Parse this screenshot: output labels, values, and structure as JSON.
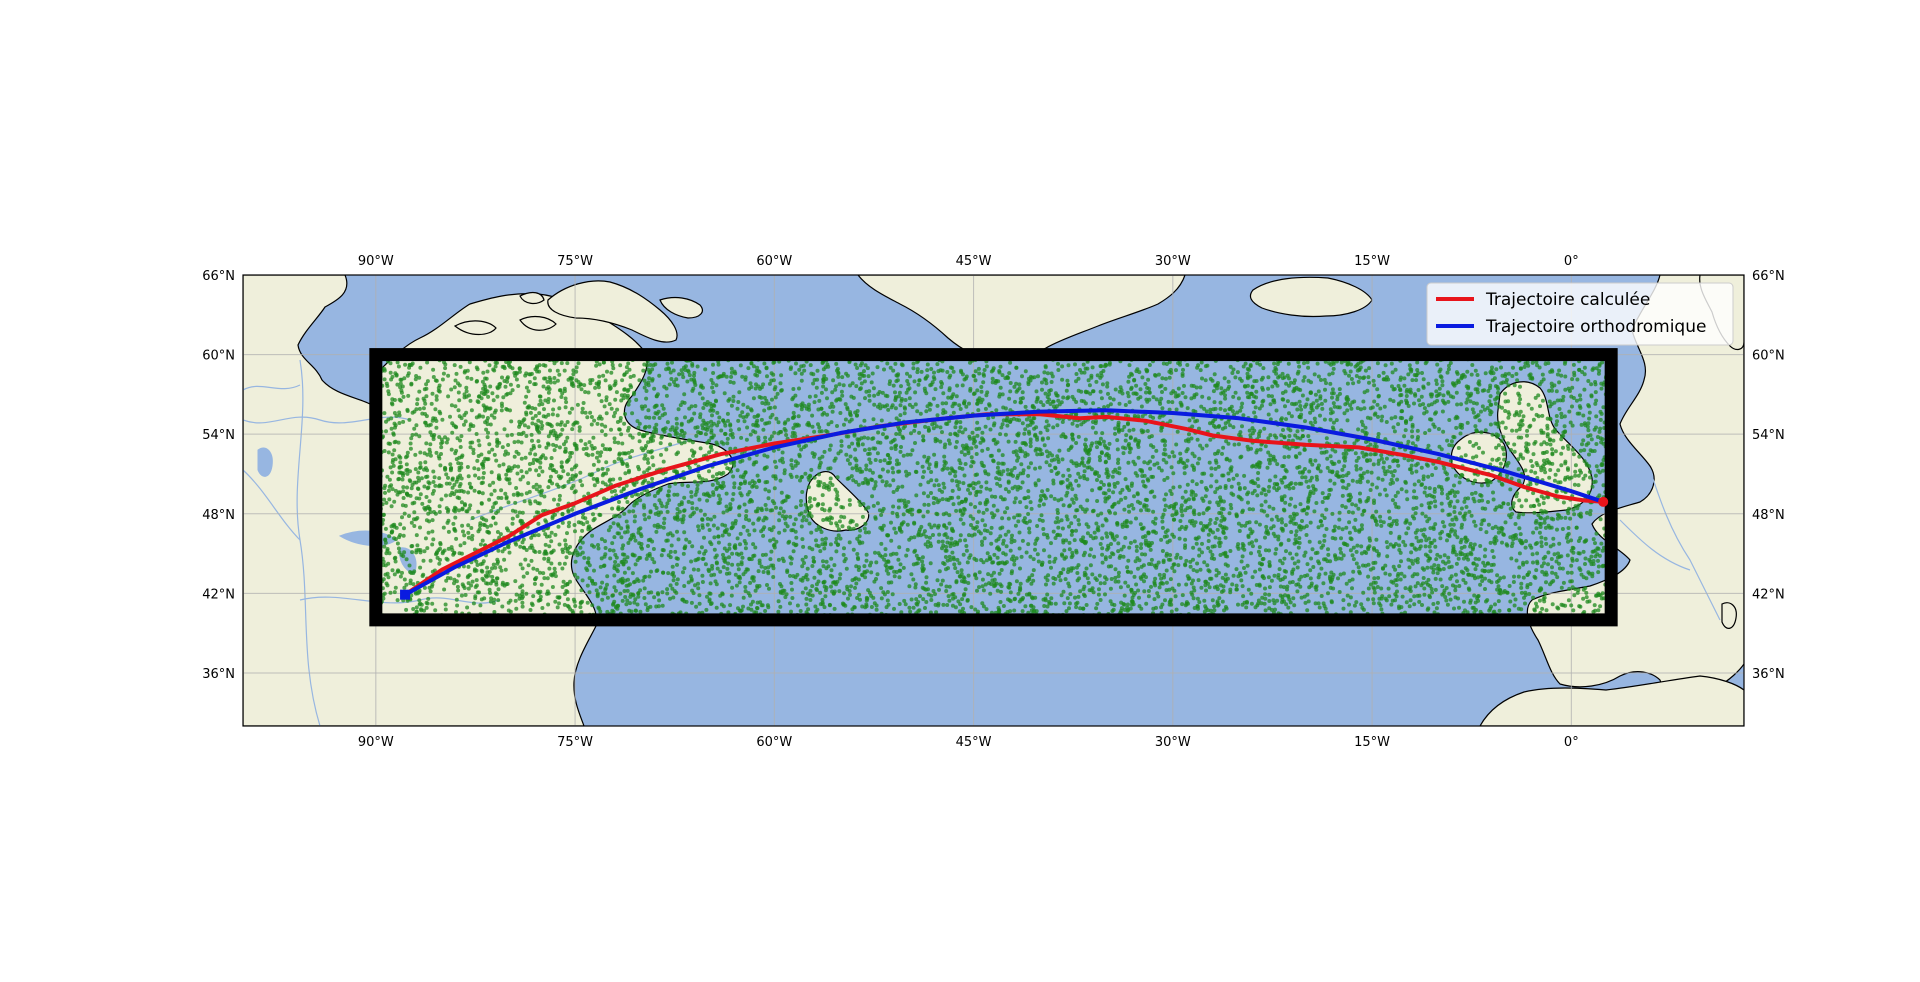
{
  "chart_data": {
    "type": "map",
    "projection": "PlateCarree",
    "extent": {
      "lon": [
        -100,
        13
      ],
      "lat": [
        32,
        66
      ]
    },
    "grid": true,
    "colors": {
      "ocean": "#97b6e1",
      "land": "#efefdb",
      "rivers": "#97b6e1",
      "frame": "#000000",
      "points": "#1f8a1f",
      "calculated": "#e8141b",
      "orthodromic": "#0a1be0"
    },
    "x_ticks": [
      "90°W",
      "75°W",
      "60°W",
      "45°W",
      "30°W",
      "15°W",
      "0°"
    ],
    "x_tick_values": [
      -90,
      -75,
      -60,
      -45,
      -30,
      -15,
      0
    ],
    "y_ticks": [
      "66°N",
      "60°N",
      "54°N",
      "48°N",
      "42°N",
      "36°N"
    ],
    "y_tick_values": [
      66,
      60,
      54,
      48,
      42,
      36
    ],
    "domain_box": {
      "lon": [
        -90,
        3
      ],
      "lat": [
        40,
        60
      ]
    },
    "random_points": {
      "count": 9000,
      "lon": [
        -90,
        3
      ],
      "lat": [
        40,
        60
      ]
    },
    "legend": {
      "position": "top-right",
      "entries": [
        {
          "label": "Trajectoire calculée",
          "series": "calculated"
        },
        {
          "label": "Trajectoire orthodromique",
          "series": "orthodromic"
        }
      ]
    },
    "series": [
      {
        "key": "calculated",
        "lon": [
          -87.8,
          -85.0,
          -80.0,
          -77.5,
          -75.0,
          -72.0,
          -68.0,
          -64.0,
          -60.0,
          -56.0,
          -52.0,
          -48.0,
          -44.0,
          -40.0,
          -37.0,
          -35.0,
          -32.0,
          -29.0,
          -27.0,
          -24.0,
          -20.0,
          -16.0,
          -12.5,
          -10.0,
          -6.0,
          -3.5,
          -1.0,
          1.0,
          2.4
        ],
        "lat": [
          41.9,
          43.8,
          46.3,
          47.9,
          48.8,
          50.1,
          51.4,
          52.5,
          53.3,
          53.9,
          54.6,
          55.1,
          55.5,
          55.5,
          55.2,
          55.3,
          55.0,
          54.4,
          53.9,
          53.5,
          53.2,
          53.0,
          52.4,
          51.9,
          50.9,
          50.0,
          49.3,
          49.0,
          48.9
        ]
      },
      {
        "key": "orthodromic",
        "lon": [
          -87.8,
          -84.0,
          -80.0,
          -75.0,
          -70.0,
          -65.0,
          -60.0,
          -55.0,
          -50.0,
          -45.0,
          -40.0,
          -35.0,
          -30.0,
          -25.0,
          -20.0,
          -15.0,
          -10.0,
          -5.0,
          0.0,
          2.4
        ],
        "lat": [
          41.9,
          44.0,
          45.9,
          48.0,
          49.9,
          51.6,
          53.0,
          54.1,
          54.9,
          55.4,
          55.7,
          55.8,
          55.6,
          55.2,
          54.5,
          53.6,
          52.5,
          51.2,
          49.7,
          48.9
        ]
      }
    ]
  }
}
